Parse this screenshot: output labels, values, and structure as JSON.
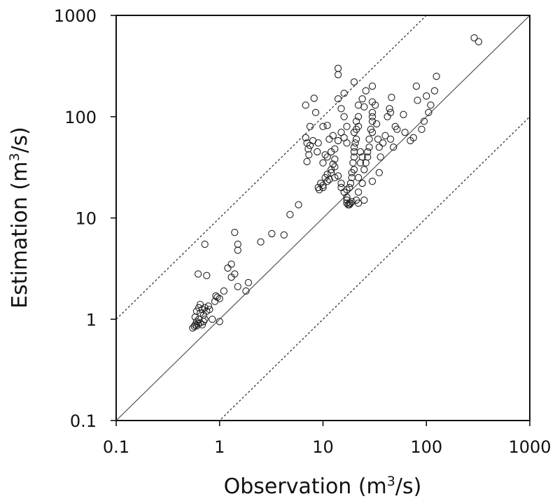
{
  "chart_data": {
    "type": "scatter",
    "scale": "log-log",
    "xlim": [
      0.1,
      1000
    ],
    "ylim": [
      0.1,
      1000
    ],
    "xticks": [
      "0.1",
      "1",
      "10",
      "100",
      "1000"
    ],
    "yticks": [
      "0.1",
      "1",
      "10",
      "100",
      "1000"
    ],
    "xlabel": {
      "prefix": "Observation (m",
      "sup": "3",
      "suffix": "/s)"
    },
    "ylabel": {
      "prefix": "Estimation (m",
      "sup": "3",
      "suffix": "/s)"
    },
    "grid": false,
    "reference_lines": [
      {
        "style": "solid",
        "relation": "y = x"
      },
      {
        "style": "dotted",
        "relation": "y = 10x"
      },
      {
        "style": "dotted",
        "relation": "y = x/10"
      }
    ],
    "points": [
      [
        0.55,
        0.82
      ],
      [
        0.57,
        0.85
      ],
      [
        0.58,
        0.88
      ],
      [
        0.6,
        0.86
      ],
      [
        0.6,
        0.95
      ],
      [
        0.62,
        0.9
      ],
      [
        0.63,
        1.0
      ],
      [
        0.58,
        1.05
      ],
      [
        0.65,
        0.92
      ],
      [
        0.68,
        0.88
      ],
      [
        0.7,
        0.95
      ],
      [
        0.72,
        1.0
      ],
      [
        0.6,
        1.2
      ],
      [
        0.63,
        1.3
      ],
      [
        0.65,
        1.15
      ],
      [
        0.68,
        1.25
      ],
      [
        0.7,
        1.1
      ],
      [
        0.72,
        1.3
      ],
      [
        0.75,
        1.2
      ],
      [
        0.78,
        1.35
      ],
      [
        0.8,
        1.25
      ],
      [
        0.65,
        1.4
      ],
      [
        0.62,
        2.8
      ],
      [
        0.72,
        5.5
      ],
      [
        0.75,
        2.7
      ],
      [
        0.9,
        1.5
      ],
      [
        0.92,
        1.7
      ],
      [
        0.95,
        1.65
      ],
      [
        1.0,
        1.6
      ],
      [
        0.85,
        1.0
      ],
      [
        1.0,
        0.95
      ],
      [
        1.1,
        1.9
      ],
      [
        1.2,
        3.2
      ],
      [
        1.3,
        3.5
      ],
      [
        1.3,
        2.6
      ],
      [
        1.4,
        2.8
      ],
      [
        1.4,
        7.2
      ],
      [
        1.5,
        5.5
      ],
      [
        1.5,
        4.8
      ],
      [
        1.5,
        2.1
      ],
      [
        1.8,
        1.9
      ],
      [
        1.9,
        2.3
      ],
      [
        2.5,
        5.8
      ],
      [
        3.2,
        7.0
      ],
      [
        4.2,
        6.8
      ],
      [
        4.8,
        10.8
      ],
      [
        5.8,
        13.5
      ],
      [
        6.8,
        130
      ],
      [
        7.5,
        80
      ],
      [
        8.2,
        152
      ],
      [
        8.5,
        110
      ],
      [
        7.0,
        55
      ],
      [
        7.2,
        48
      ],
      [
        7.3,
        42
      ],
      [
        7.0,
        36
      ],
      [
        6.8,
        62
      ],
      [
        7.5,
        52
      ],
      [
        8.0,
        58
      ],
      [
        9.0,
        55
      ],
      [
        8.8,
        45
      ],
      [
        9.0,
        20
      ],
      [
        9.2,
        19
      ],
      [
        9.5,
        22
      ],
      [
        10,
        21
      ],
      [
        10,
        20
      ],
      [
        10.5,
        25
      ],
      [
        11,
        23
      ],
      [
        11,
        27
      ],
      [
        11.5,
        24
      ],
      [
        12,
        30
      ],
      [
        12,
        28
      ],
      [
        12.5,
        34
      ],
      [
        13,
        32
      ],
      [
        13,
        38
      ],
      [
        10,
        35
      ],
      [
        11,
        40
      ],
      [
        10.5,
        42
      ],
      [
        12,
        45
      ],
      [
        13,
        48
      ],
      [
        11.5,
        60
      ],
      [
        12.5,
        65
      ],
      [
        10,
        80
      ],
      [
        11,
        82
      ],
      [
        14,
        300
      ],
      [
        14,
        260
      ],
      [
        16,
        170
      ],
      [
        14,
        150
      ],
      [
        15,
        120
      ],
      [
        16,
        100
      ],
      [
        17,
        80
      ],
      [
        15,
        70
      ],
      [
        16,
        62
      ],
      [
        17,
        55
      ],
      [
        14,
        58
      ],
      [
        13,
        25
      ],
      [
        14,
        26
      ],
      [
        15,
        20
      ],
      [
        15,
        22
      ],
      [
        16,
        18
      ],
      [
        17,
        16
      ],
      [
        17,
        15
      ],
      [
        17,
        14
      ],
      [
        17.5,
        13.5
      ],
      [
        18,
        14
      ],
      [
        18,
        13.5
      ],
      [
        18.5,
        14
      ],
      [
        19,
        14.5
      ],
      [
        17,
        19
      ],
      [
        18,
        20
      ],
      [
        18.5,
        22
      ],
      [
        19,
        25
      ],
      [
        19,
        28
      ],
      [
        20,
        30
      ],
      [
        19.5,
        35
      ],
      [
        20,
        40
      ],
      [
        20,
        45
      ],
      [
        20,
        50
      ],
      [
        20.5,
        55
      ],
      [
        21,
        60
      ],
      [
        20,
        70
      ],
      [
        21,
        75
      ],
      [
        22,
        80
      ],
      [
        21,
        90
      ],
      [
        22,
        100
      ],
      [
        20,
        220
      ],
      [
        22,
        130
      ],
      [
        24,
        150
      ],
      [
        25,
        125
      ],
      [
        26,
        180
      ],
      [
        23,
        35
      ],
      [
        24,
        40
      ],
      [
        23,
        45
      ],
      [
        22,
        18
      ],
      [
        21,
        15
      ],
      [
        22,
        14
      ],
      [
        25,
        15
      ],
      [
        24,
        22
      ],
      [
        22,
        25
      ],
      [
        25,
        30
      ],
      [
        26,
        35
      ],
      [
        27,
        40
      ],
      [
        27,
        45
      ],
      [
        28,
        50
      ],
      [
        28,
        60
      ],
      [
        30,
        70
      ],
      [
        29,
        75
      ],
      [
        30,
        90
      ],
      [
        30,
        100
      ],
      [
        30,
        110
      ],
      [
        30,
        140
      ],
      [
        30,
        200
      ],
      [
        32,
        130
      ],
      [
        33,
        85
      ],
      [
        34,
        60
      ],
      [
        35,
        50
      ],
      [
        35,
        28
      ],
      [
        30,
        23
      ],
      [
        36,
        40
      ],
      [
        38,
        55
      ],
      [
        40,
        65
      ],
      [
        42,
        100
      ],
      [
        44,
        120
      ],
      [
        45,
        110
      ],
      [
        46,
        155
      ],
      [
        45,
        60
      ],
      [
        48,
        50
      ],
      [
        50,
        80
      ],
      [
        52,
        75
      ],
      [
        60,
        105
      ],
      [
        62,
        70
      ],
      [
        70,
        58
      ],
      [
        75,
        62
      ],
      [
        80,
        200
      ],
      [
        82,
        145
      ],
      [
        90,
        75
      ],
      [
        95,
        90
      ],
      [
        100,
        160
      ],
      [
        105,
        110
      ],
      [
        110,
        130
      ],
      [
        120,
        180
      ],
      [
        125,
        250
      ],
      [
        290,
        600
      ],
      [
        320,
        550
      ]
    ]
  }
}
